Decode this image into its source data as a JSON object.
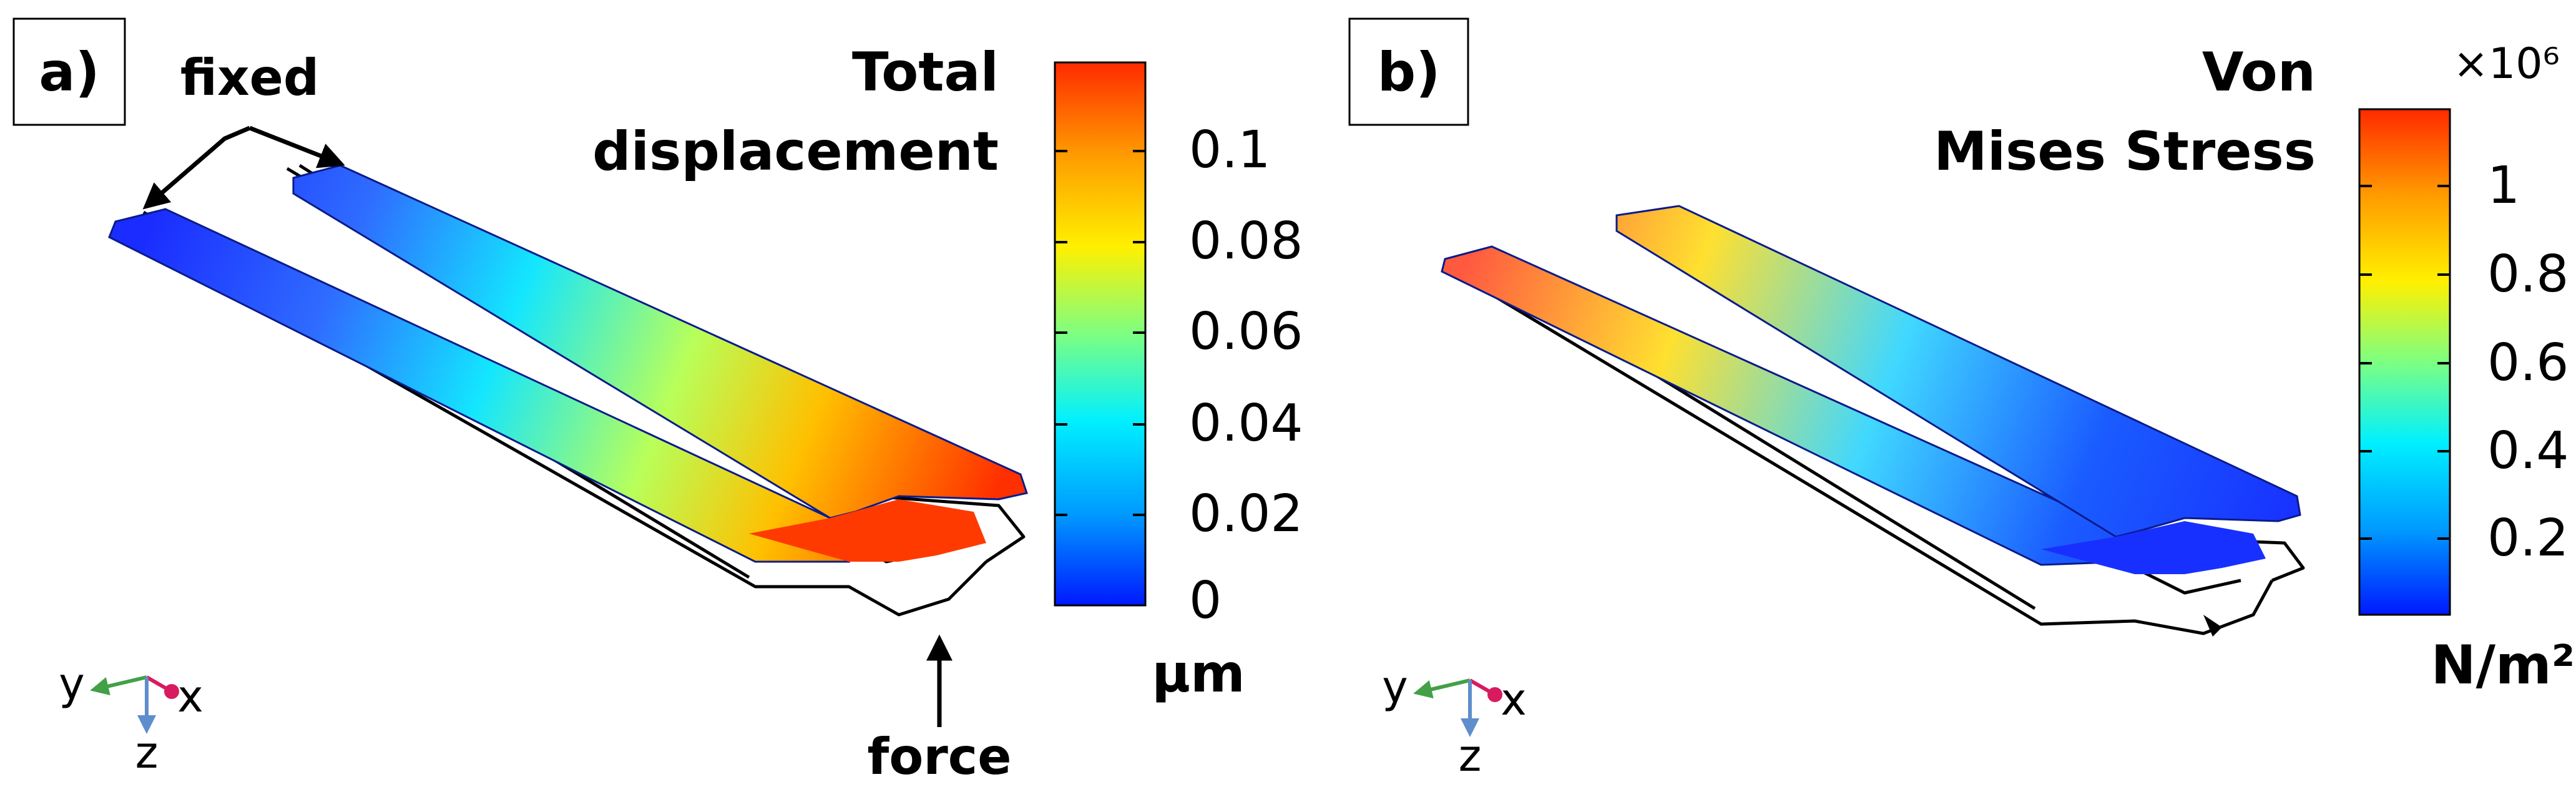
{
  "panels": [
    {
      "label": "a)",
      "annotations": {
        "fixed": "fixed",
        "force": "force"
      },
      "colorbar": {
        "title_lines": [
          "Total",
          "displacement"
        ],
        "ticks": [
          "0.1",
          "0.08",
          "0.06",
          "0.04",
          "0.02",
          "0"
        ],
        "tick_values": [
          0.1,
          0.08,
          0.06,
          0.04,
          0.02,
          0
        ],
        "unit": "µm",
        "range": [
          0,
          0.117
        ]
      },
      "axes": {
        "x": "x",
        "y": "y",
        "z": "z"
      }
    },
    {
      "label": "b)",
      "colorbar": {
        "title_lines": [
          "Von",
          "Mises Stress"
        ],
        "multiplier": "×10⁶",
        "ticks": [
          "1",
          "0.8",
          "0.6",
          "0.4",
          "0.2"
        ],
        "tick_values": [
          1,
          0.8,
          0.6,
          0.4,
          0.2
        ],
        "unit": "N/m²",
        "range": [
          0.02,
          1.12
        ]
      },
      "axes": {
        "x": "x",
        "y": "y",
        "z": "z"
      }
    }
  ],
  "colors": {
    "colormap": [
      "#0019ff",
      "#009bff",
      "#00f0ff",
      "#7dff82",
      "#fff000",
      "#ff9b00",
      "#ff2a00"
    ],
    "outline": "#000000",
    "axis_x": "#d81b60",
    "axis_y": "#43a047",
    "axis_z": "#5e8ecb"
  }
}
